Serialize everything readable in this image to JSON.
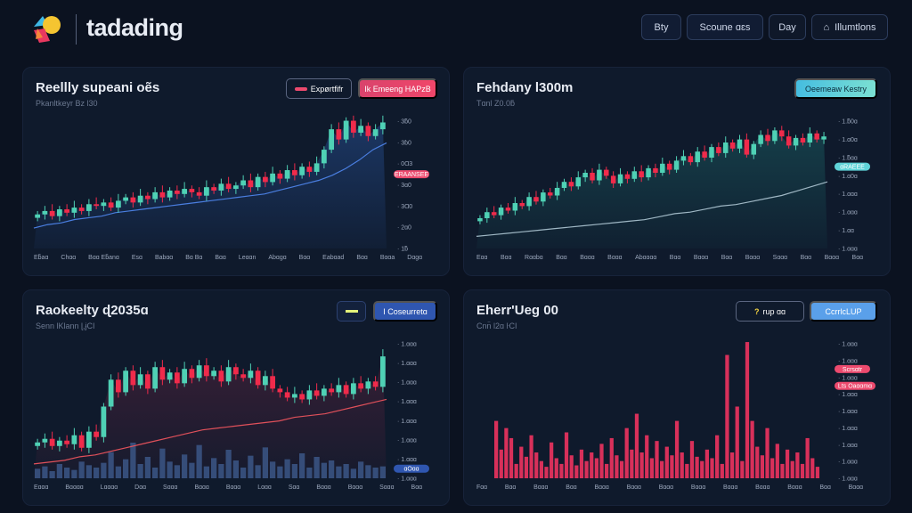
{
  "header": {
    "brand": "tadading",
    "buttons": [
      "Bty",
      "Scoune ɑɛs",
      "Day",
      "Illumtlons"
    ],
    "icons": [
      "logo-mark",
      "bell-icon"
    ]
  },
  "colors": {
    "up": "#4fd1b5",
    "down": "#ef2b4b",
    "accent_pink": "#ec4a6e",
    "accent_teal": "#5fd3d8",
    "accent_blue": "#2f56b0",
    "bg": "#0b1220",
    "panel": "#0f1a2c"
  },
  "panels": [
    {
      "title": "Reellly supeani oẽs",
      "subtitle": "Pkanltkeyr Bz l30",
      "buttons": [
        "Expørtfifr",
        "Ik Emeeng HAPzB"
      ],
      "badge": "ERAANSEE",
      "chart_data": {
        "type": "candlestick",
        "closes": [
          20,
          22,
          19,
          23,
          21,
          24,
          22,
          26,
          25,
          27,
          24,
          28,
          30,
          27,
          31,
          29,
          33,
          30,
          34,
          32,
          35,
          33,
          31,
          36,
          34,
          38,
          35,
          37,
          40,
          36,
          42,
          39,
          44,
          41,
          46,
          43,
          48,
          45,
          50,
          58,
          70,
          64,
          75,
          68,
          72,
          66,
          70,
          74
        ],
        "trend": [
          12,
          14,
          15,
          17,
          18,
          19,
          21,
          22,
          23,
          24,
          25,
          26,
          27,
          28,
          29,
          30,
          31,
          32,
          34,
          36,
          38,
          40,
          43,
          47,
          52,
          58,
          62
        ],
        "yticks": [
          "3ƃ0",
          "3ɓ0",
          "0Ɑ3",
          "3ɑ0",
          "3Ɑ0",
          "2ɑ0",
          "1ƃ"
        ],
        "xticks": [
          "Eƃaɑ",
          "Chɑɑ",
          "Bɑɑ Eƃanɑ",
          "Esɑ",
          "Babɑɑ",
          "Bɑ Bɑ",
          "Bɑɑ",
          "Leɑɑn",
          "Abɑgɑ",
          "Bɑɑ",
          "Eabɑad",
          "Bɑɑ",
          "Bɑɑa",
          "Dɑgɑ"
        ],
        "ylim": [
          0,
          80
        ]
      }
    },
    {
      "title": "Fehdany l300m",
      "subtitle": "Tɑnl Z0.0ƃ",
      "buttons": [
        "Oeemeaw Kestry"
      ],
      "badge": "ɑRAEEE",
      "chart_data": {
        "type": "candlestick",
        "closes": [
          20,
          24,
          22,
          27,
          25,
          30,
          28,
          34,
          31,
          37,
          35,
          40,
          44,
          41,
          47,
          50,
          45,
          52,
          48,
          43,
          49,
          46,
          51,
          47,
          53,
          50,
          56,
          52,
          58,
          61,
          57,
          64,
          60,
          67,
          63,
          70,
          66,
          72,
          62,
          69,
          75,
          71,
          78,
          74,
          68,
          73,
          70,
          76,
          72,
          74
        ],
        "trend": [
          8,
          9,
          10,
          11,
          12,
          13,
          14,
          15,
          16,
          17,
          18,
          19,
          21,
          23,
          24,
          26,
          28,
          29,
          31,
          33,
          35,
          38,
          41,
          44
        ],
        "yticks": [
          "1.ƃ0ɑ",
          "1.ɑ0ɑ",
          "1.ƃɑɑ",
          "1.ɑ0ɑ",
          "1.ɑɑɑ",
          "1.ɑɑɑ",
          "1.ɑɑ",
          "1.ɑɑɑ"
        ],
        "xticks": [
          "Eɑɑ",
          "Bɑɑ",
          "Rɑɑbɑ",
          "Bɑɑ",
          "Bɑɑɑ",
          "Bɑɑɑ",
          "Abɑɑɑɑ",
          "Bɑɑ",
          "Bɑɑɑ",
          "Bɑɑ",
          "Bɑɑɑ",
          "Sɑɑɑ",
          "Bɑɑ",
          "Bɑɑɑ",
          "Bɑɑ"
        ],
        "ylim": [
          0,
          90
        ]
      }
    },
    {
      "title": "Raokeelty ɖ2035ɑ",
      "subtitle": "Senn lKlann ɭ,ɉCI",
      "buttons": [
        "",
        "I Coseurretɑ"
      ],
      "badge": "ɑOɑɑ",
      "chart_data": {
        "type": "candlestick",
        "closes": [
          20,
          22,
          18,
          21,
          19,
          24,
          17,
          26,
          23,
          40,
          55,
          48,
          60,
          52,
          58,
          50,
          62,
          55,
          59,
          53,
          61,
          56,
          63,
          57,
          60,
          54,
          62,
          58,
          56,
          60,
          52,
          57,
          50,
          48,
          45,
          47,
          44,
          49,
          46,
          50,
          48,
          52,
          47,
          53,
          50,
          54,
          51,
          68
        ],
        "trend": [
          8,
          9,
          10,
          12,
          13,
          15,
          17,
          19,
          21,
          23,
          25,
          27,
          28,
          29,
          30,
          31,
          32,
          34,
          35,
          36,
          38,
          40,
          42,
          44
        ],
        "volume": [
          8,
          10,
          6,
          12,
          9,
          7,
          14,
          11,
          9,
          13,
          22,
          10,
          16,
          30,
          12,
          18,
          9,
          25,
          14,
          11,
          20,
          13,
          28,
          10,
          17,
          12,
          24,
          15,
          9,
          19,
          11,
          26,
          14,
          10,
          16,
          12,
          21,
          9,
          18,
          13,
          15,
          10,
          12,
          8,
          14,
          11,
          9,
          10
        ],
        "yticks": [
          "1.ɑɑɑ",
          "1.ɑɑɑ",
          "1.ɑɑɑ",
          "1.ɑɑɑ",
          "1.ɑɑɑ",
          "1.ɑɑɑ",
          "1.ɑɑɑ",
          "1.ɑɑɑ"
        ],
        "xticks": [
          "Eɑɑɑ",
          "Bɑɑɑɑ",
          "Lɑɑɑɑ",
          "Dɑɑ",
          "Sɑɑɑ",
          "Bɑɑɑ",
          "Bɑɑɑ",
          "Lɑɑɑ",
          "Sɑɑ",
          "Bɑɑɑ",
          "Bɑɑɑ",
          "Sɑɑɑ",
          "Bɑɑ"
        ],
        "ylim": [
          0,
          80
        ]
      }
    },
    {
      "title": "Eherr'Ueg 00",
      "subtitle": "Cnn̈ l2ɑ ŀCI",
      "buttons": [
        "rup ɑɑ",
        "CcrrlcLUP"
      ],
      "badge": "Scrsɑtr",
      "badge2": "Lts Oaɑɑmɑ",
      "chart_data": {
        "type": "bar",
        "values": [
          40,
          20,
          35,
          28,
          10,
          22,
          15,
          30,
          18,
          12,
          8,
          25,
          14,
          10,
          32,
          16,
          9,
          20,
          12,
          18,
          14,
          24,
          10,
          28,
          16,
          12,
          35,
          20,
          45,
          18,
          30,
          14,
          26,
          12,
          22,
          16,
          40,
          18,
          10,
          26,
          15,
          12,
          20,
          14,
          30,
          10,
          86,
          18,
          50,
          12,
          95,
          40,
          22,
          16,
          35,
          14,
          24,
          10,
          20,
          12,
          18,
          10,
          28,
          14,
          8
        ],
        "yticks": [
          "1.ɑɑɑ",
          "1.ɑɑɑ",
          "1.ɑɑɑ",
          "1.ɑɑɑ",
          "1.ɑɑɑ",
          "1.ɑɑɑ",
          "1.ɑɑɑ",
          "1.ɑɑɑ",
          "1.ɑɑɑ"
        ],
        "xticks": [
          "Fɑɑ",
          "Bɑɑ",
          "Bɑɑɑ",
          "Bɑɑ",
          "Bɑɑɑ",
          "Bɑɑɑ",
          "Bɑɑɑ",
          "Bɑɑɑ",
          "Bɑɑɑ",
          "Bɑɑɑ",
          "Bɑɑɑ",
          "Bɑɑ",
          "Bɑɑɑ"
        ],
        "ylim": [
          0,
          100
        ]
      }
    }
  ]
}
